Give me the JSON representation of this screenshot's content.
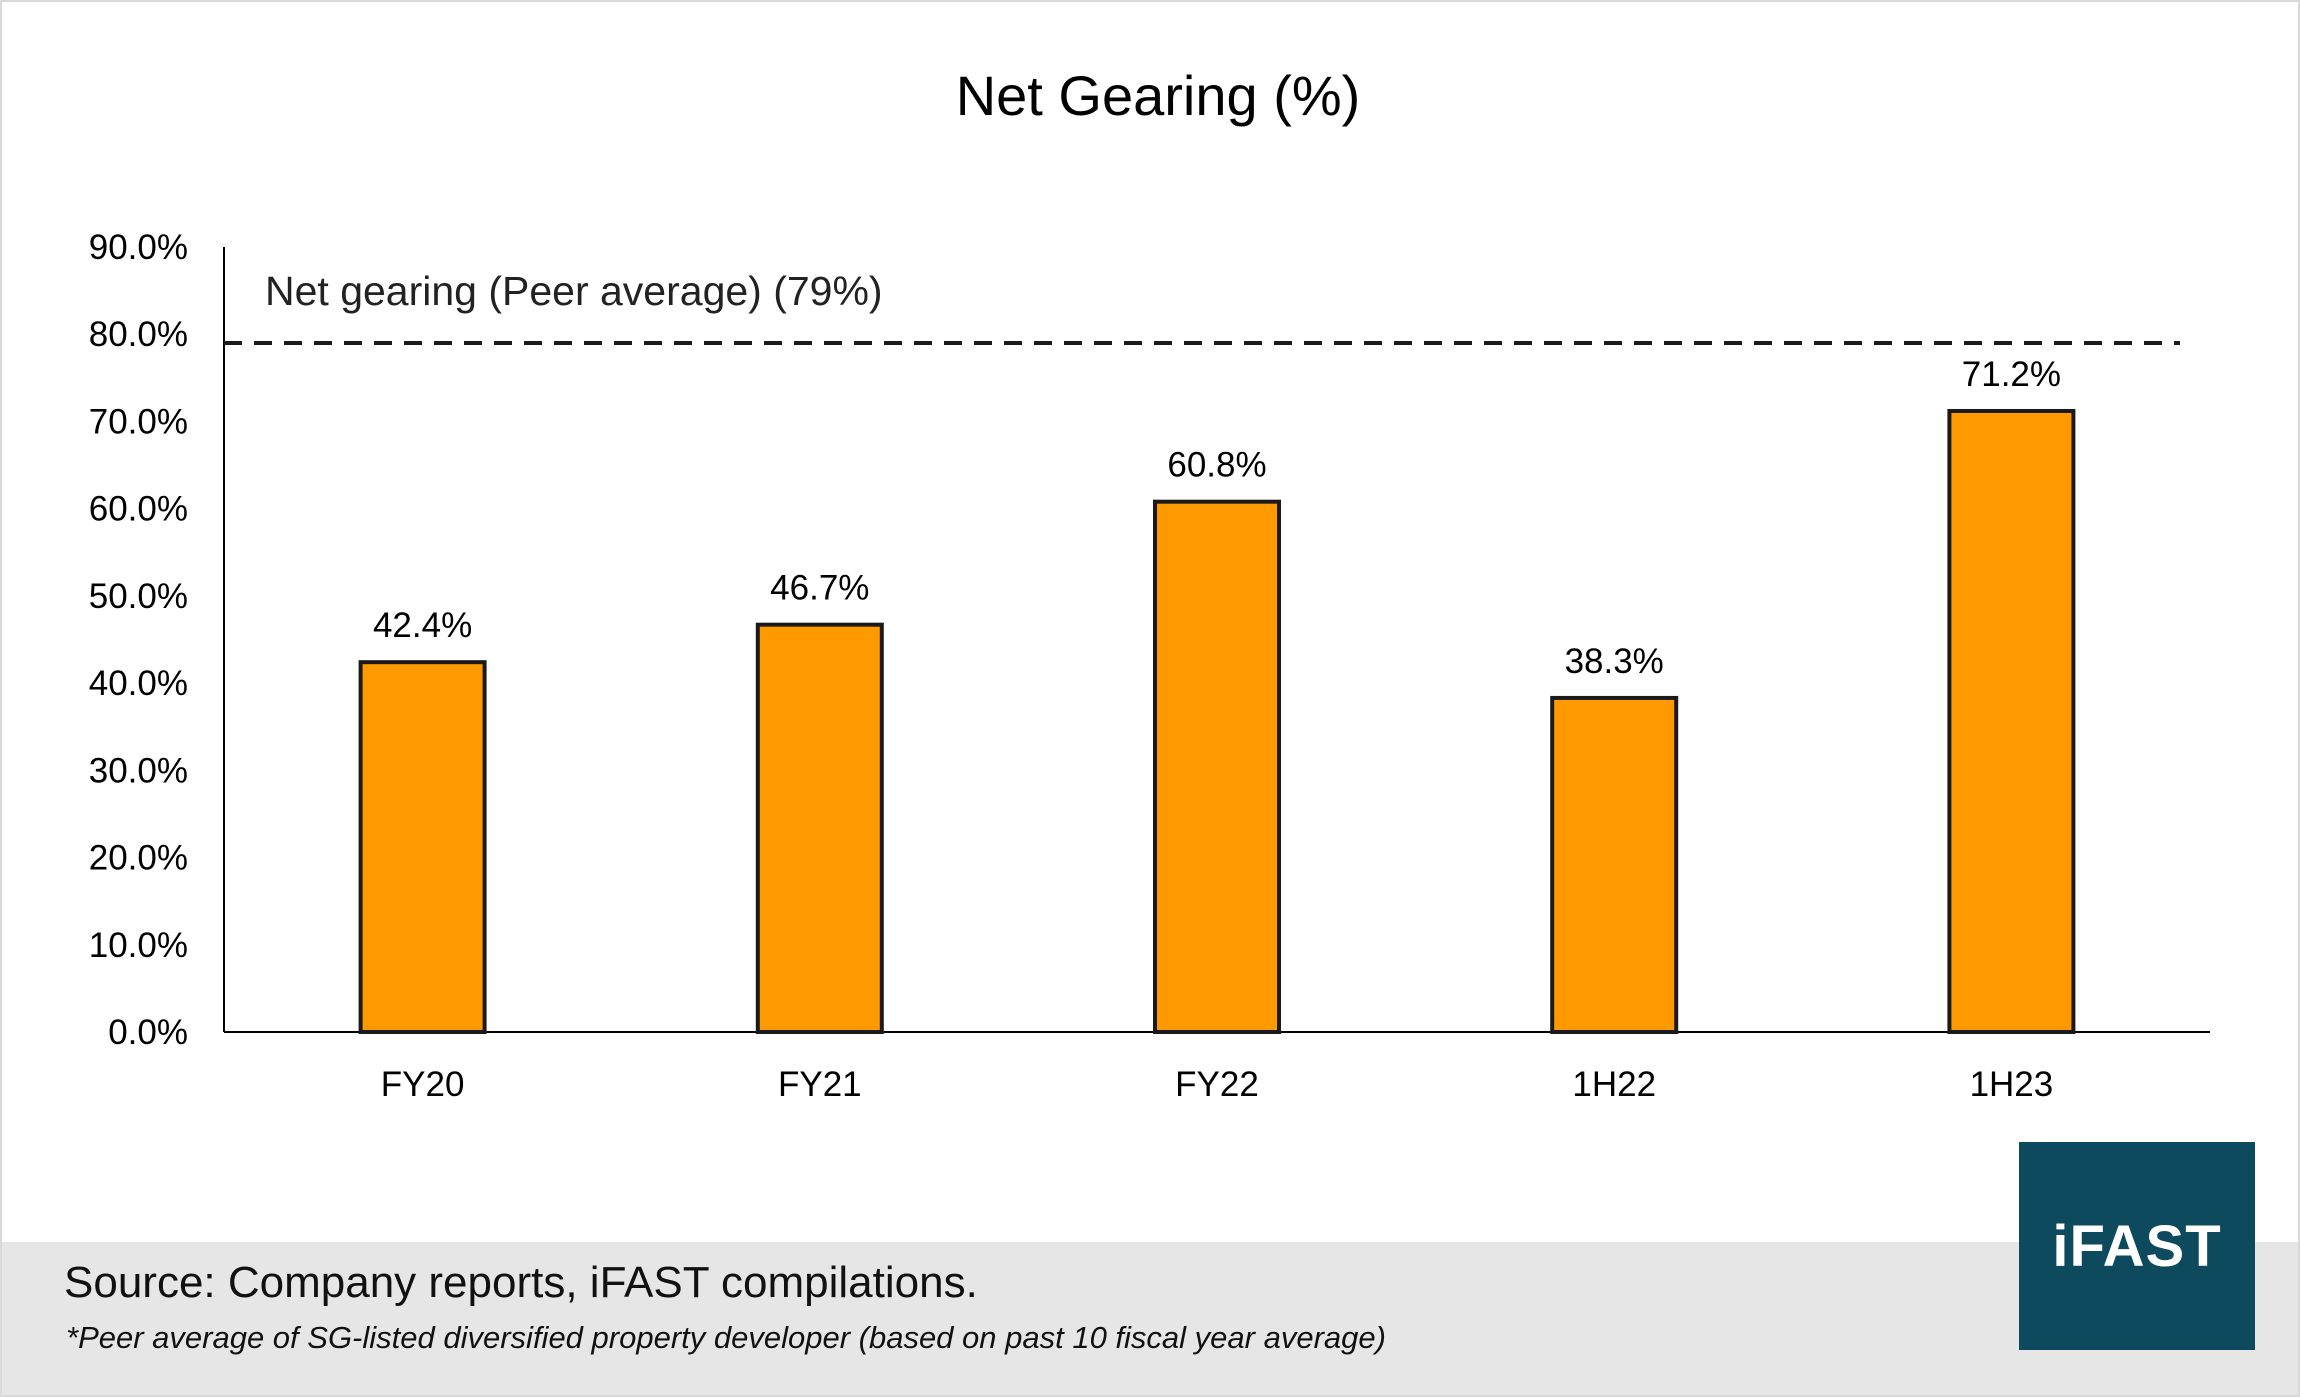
{
  "chart_data": {
    "type": "bar",
    "title": "Net Gearing (%)",
    "categories": [
      "FY20",
      "FY21",
      "FY22",
      "1H22",
      "1H23"
    ],
    "values": [
      42.4,
      46.7,
      60.8,
      38.3,
      71.2
    ],
    "data_labels": [
      "42.4%",
      "46.7%",
      "60.8%",
      "38.3%",
      "71.2%"
    ],
    "ylim": [
      0,
      90
    ],
    "yticks": [
      0,
      10,
      20,
      30,
      40,
      50,
      60,
      70,
      80,
      90
    ],
    "ytick_labels": [
      "0.0%",
      "10.0%",
      "20.0%",
      "30.0%",
      "40.0%",
      "50.0%",
      "60.0%",
      "70.0%",
      "80.0%",
      "90.0%"
    ],
    "xlabel": "",
    "ylabel": "",
    "grid": false,
    "reference_line": {
      "value": 79,
      "style": "dashed",
      "label": "Net gearing (Peer average) (79%)"
    },
    "bar_color": "#FF9900",
    "bar_outline_color": "#1a1a1a"
  },
  "footer": {
    "source": "Source: Company reports, iFAST compilations.",
    "footnote": "*Peer average of SG-listed diversified property developer (based on past 10 fiscal year average)"
  },
  "logo": {
    "text": "iFAST",
    "background_color": "#0D4A5E"
  }
}
